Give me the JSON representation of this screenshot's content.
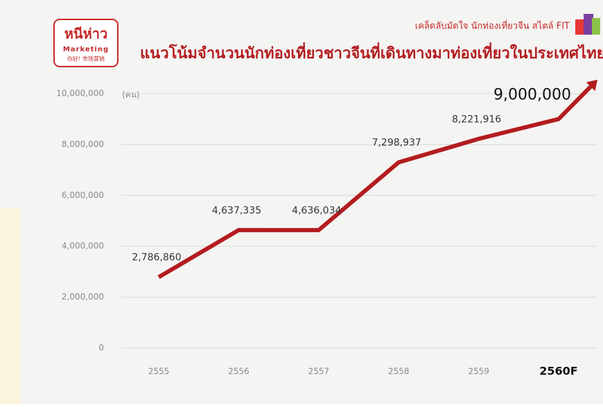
{
  "logo": {
    "name": "หนีห่าว",
    "tagline": "Marketing",
    "subtext": "你好! 市场营销"
  },
  "header_note": "เคล็ดลับมัดใจ นักท่องเที่ยวจีน สไตล์ FIT",
  "chart_data": {
    "type": "line",
    "title": "แนวโน้มจำนวนนักท่องเที่ยวชาวจีนที่เดินทางมาท่องเที่ยวในประเทศไทย",
    "y_label": "(คน)",
    "categories": [
      "2555",
      "2556",
      "2557",
      "2558",
      "2559",
      "2560F"
    ],
    "values": [
      2786860,
      4637335,
      4636034,
      7298937,
      8221916,
      9000000
    ],
    "value_labels": [
      "2,786,860",
      "4,637,335",
      "4,636,034",
      "7,298,937",
      "8,221,916",
      "9,000,000"
    ],
    "color": "#b41c1f",
    "ylim": [
      0,
      10000000
    ],
    "yticks": [
      0,
      {
        "value": 2000000,
        "label": "2,000,000"
      },
      {
        "value": 4000000,
        "label": "4,000,000"
      },
      {
        "value": 6000000,
        "label": "6,000,000"
      },
      {
        "value": 8000000,
        "label": "8,000,000"
      },
      {
        "value": 10000000,
        "label": "10,000,000"
      }
    ],
    "grid": true
  }
}
